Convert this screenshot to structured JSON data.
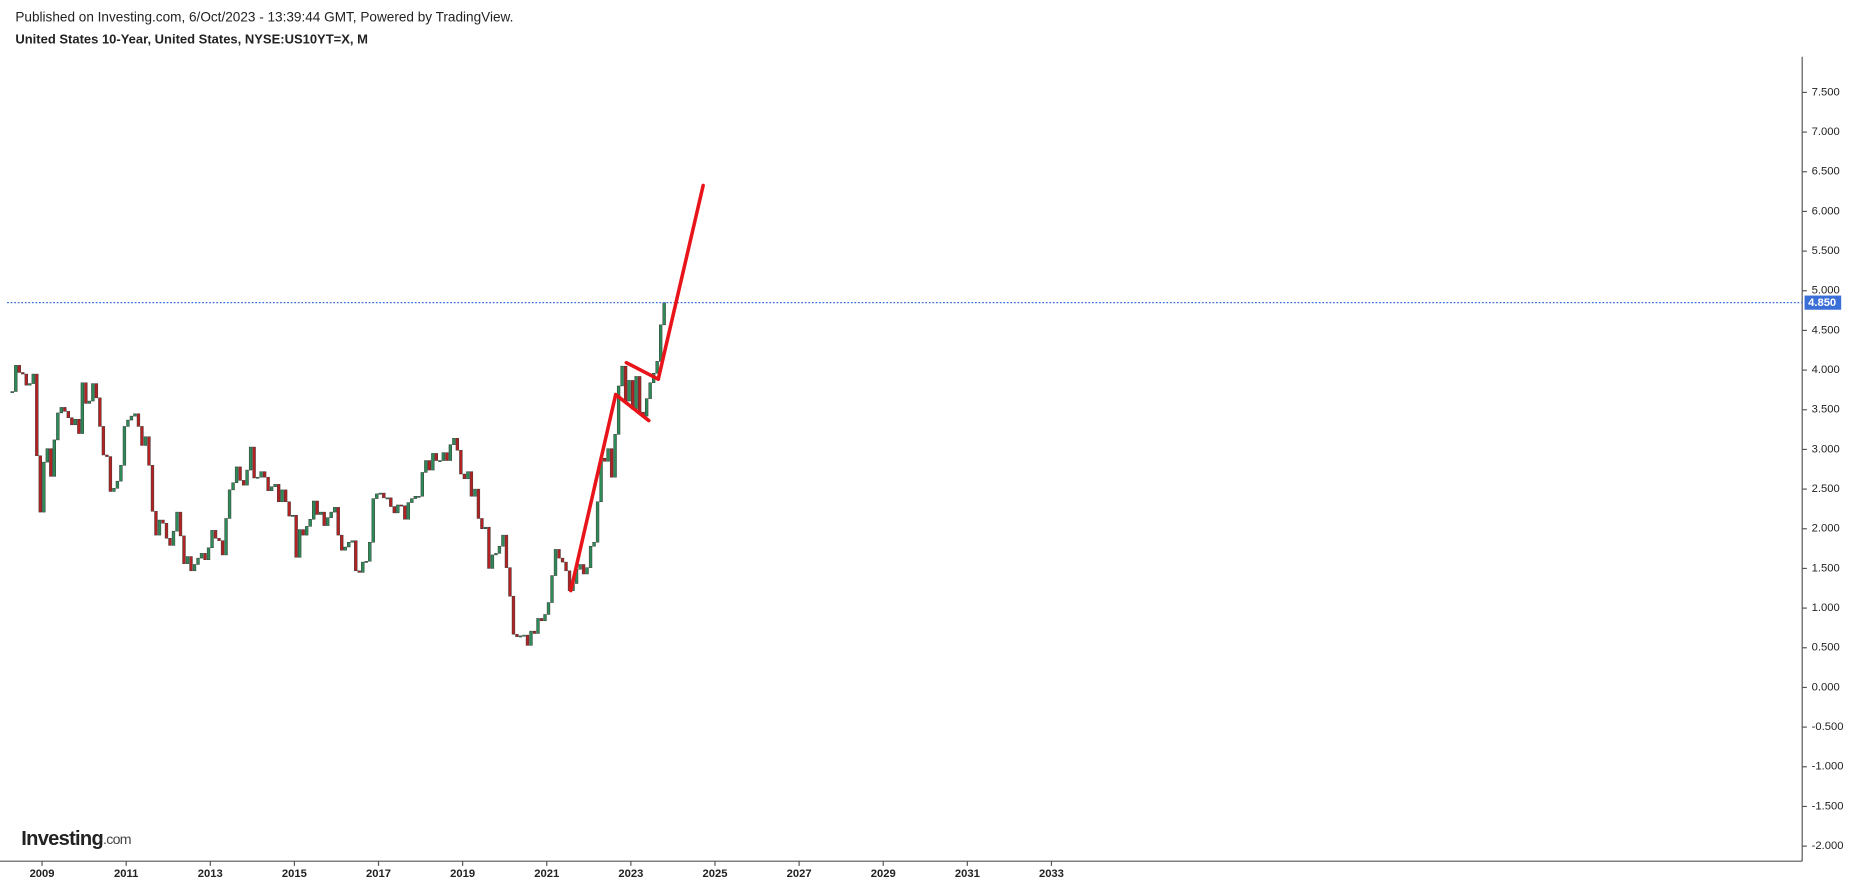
{
  "header": {
    "published": "Published on Investing.com, 6/Oct/2023 - 13:39:44 GMT, Powered by TradingView.",
    "symbol": "United States 10-Year, United States, NYSE:US10YT=X, M"
  },
  "logo": {
    "brand": "Investing",
    "suffix": ".com"
  },
  "chart_data": {
    "type": "candlestick",
    "x": [
      "2008-04",
      "2008-05",
      "2008-06",
      "2008-07",
      "2008-08",
      "2008-09",
      "2008-10",
      "2008-11",
      "2008-12",
      "2009-01",
      "2009-02",
      "2009-03",
      "2009-04",
      "2009-05",
      "2009-06",
      "2009-07",
      "2009-08",
      "2009-09",
      "2009-10",
      "2009-11",
      "2009-12",
      "2010-01",
      "2010-02",
      "2010-03",
      "2010-04",
      "2010-05",
      "2010-06",
      "2010-07",
      "2010-08",
      "2010-09",
      "2010-10",
      "2010-11",
      "2010-12",
      "2011-01",
      "2011-02",
      "2011-03",
      "2011-04",
      "2011-05",
      "2011-06",
      "2011-07",
      "2011-08",
      "2011-09",
      "2011-10",
      "2011-11",
      "2011-12",
      "2012-01",
      "2012-02",
      "2012-03",
      "2012-04",
      "2012-05",
      "2012-06",
      "2012-07",
      "2012-08",
      "2012-09",
      "2012-10",
      "2012-11",
      "2012-12",
      "2013-01",
      "2013-02",
      "2013-03",
      "2013-04",
      "2013-05",
      "2013-06",
      "2013-07",
      "2013-08",
      "2013-09",
      "2013-10",
      "2013-11",
      "2013-12",
      "2014-01",
      "2014-02",
      "2014-03",
      "2014-04",
      "2014-05",
      "2014-06",
      "2014-07",
      "2014-08",
      "2014-09",
      "2014-10",
      "2014-11",
      "2014-12",
      "2015-01",
      "2015-02",
      "2015-03",
      "2015-04",
      "2015-05",
      "2015-06",
      "2015-07",
      "2015-08",
      "2015-09",
      "2015-10",
      "2015-11",
      "2015-12",
      "2016-01",
      "2016-02",
      "2016-03",
      "2016-04",
      "2016-05",
      "2016-06",
      "2016-07",
      "2016-08",
      "2016-09",
      "2016-10",
      "2016-11",
      "2016-12",
      "2017-01",
      "2017-02",
      "2017-03",
      "2017-04",
      "2017-05",
      "2017-06",
      "2017-07",
      "2017-08",
      "2017-09",
      "2017-10",
      "2017-11",
      "2017-12",
      "2018-01",
      "2018-02",
      "2018-03",
      "2018-04",
      "2018-05",
      "2018-06",
      "2018-07",
      "2018-08",
      "2018-09",
      "2018-10",
      "2018-11",
      "2018-12",
      "2019-01",
      "2019-02",
      "2019-03",
      "2019-04",
      "2019-05",
      "2019-06",
      "2019-07",
      "2019-08",
      "2019-09",
      "2019-10",
      "2019-11",
      "2019-12",
      "2020-01",
      "2020-02",
      "2020-03",
      "2020-04",
      "2020-05",
      "2020-06",
      "2020-07",
      "2020-08",
      "2020-09",
      "2020-10",
      "2020-11",
      "2020-12",
      "2021-01",
      "2021-02",
      "2021-03",
      "2021-04",
      "2021-05",
      "2021-06",
      "2021-07",
      "2021-08",
      "2021-09",
      "2021-10",
      "2021-11",
      "2021-12",
      "2022-01",
      "2022-02",
      "2022-03",
      "2022-04",
      "2022-05",
      "2022-06",
      "2022-07",
      "2022-08",
      "2022-09",
      "2022-10",
      "2022-11",
      "2022-12",
      "2023-01",
      "2023-02",
      "2023-03",
      "2023-04",
      "2023-05",
      "2023-06",
      "2023-07",
      "2023-08",
      "2023-09",
      "2023-10"
    ],
    "values": [
      3.73,
      4.06,
      3.97,
      3.95,
      3.81,
      3.83,
      3.95,
      2.92,
      2.21,
      2.84,
      3.01,
      2.66,
      3.12,
      3.46,
      3.53,
      3.48,
      3.4,
      3.31,
      3.38,
      3.2,
      3.84,
      3.58,
      3.61,
      3.83,
      3.65,
      3.29,
      2.93,
      2.91,
      2.47,
      2.51,
      2.6,
      2.8,
      3.29,
      3.37,
      3.42,
      3.45,
      3.29,
      3.05,
      3.16,
      2.8,
      2.22,
      1.92,
      2.11,
      2.07,
      1.88,
      1.79,
      1.97,
      2.21,
      1.91,
      1.56,
      1.65,
      1.47,
      1.55,
      1.63,
      1.69,
      1.61,
      1.76,
      1.98,
      1.88,
      1.85,
      1.67,
      2.13,
      2.49,
      2.58,
      2.78,
      2.61,
      2.55,
      2.74,
      3.03,
      2.64,
      2.65,
      2.72,
      2.65,
      2.48,
      2.53,
      2.56,
      2.34,
      2.49,
      2.34,
      2.16,
      2.17,
      1.64,
      1.99,
      1.92,
      2.03,
      2.12,
      2.35,
      2.18,
      2.21,
      2.04,
      2.14,
      2.21,
      2.27,
      1.92,
      1.73,
      1.77,
      1.83,
      1.85,
      1.47,
      1.45,
      1.58,
      1.59,
      1.83,
      2.38,
      2.44,
      2.45,
      2.39,
      2.39,
      2.28,
      2.2,
      2.3,
      2.29,
      2.12,
      2.33,
      2.38,
      2.41,
      2.41,
      2.71,
      2.86,
      2.74,
      2.95,
      2.86,
      2.86,
      2.96,
      2.86,
      3.06,
      3.14,
      2.99,
      2.69,
      2.63,
      2.72,
      2.41,
      2.5,
      2.13,
      2.0,
      2.02,
      1.5,
      1.67,
      1.69,
      1.78,
      1.92,
      1.51,
      1.15,
      0.67,
      0.64,
      0.65,
      0.66,
      0.53,
      0.71,
      0.68,
      0.87,
      0.84,
      0.92,
      1.07,
      1.41,
      1.74,
      1.63,
      1.58,
      1.47,
      1.22,
      1.31,
      1.49,
      1.55,
      1.43,
      1.51,
      1.78,
      1.83,
      2.34,
      2.89,
      2.85,
      3.01,
      2.65,
      3.19,
      3.8,
      4.05,
      3.61,
      3.87,
      3.51,
      3.92,
      3.47,
      3.42,
      3.64,
      3.84,
      3.96,
      4.11,
      4.57,
      4.85
    ],
    "up_color": "#2e8b57",
    "down_color": "#b22222",
    "xlim": [
      2008,
      2050.85
    ],
    "xticks": [
      2009,
      2011,
      2013,
      2015,
      2017,
      2019,
      2021,
      2023,
      2025,
      2027,
      2029,
      2031,
      2033
    ],
    "ylim": [
      -2.19,
      7.95
    ],
    "yticks": [
      {
        "value": -2,
        "label": "-2.000"
      },
      {
        "value": -1.5,
        "label": "-1.500"
      },
      {
        "value": -1,
        "label": "-1.000"
      },
      {
        "value": -0.5,
        "label": "-0.500"
      },
      {
        "value": 0,
        "label": "0.000"
      },
      {
        "value": 0.5,
        "label": "0.500"
      },
      {
        "value": 1,
        "label": "1.000"
      },
      {
        "value": 1.5,
        "label": "1.500"
      },
      {
        "value": 2,
        "label": "2.000"
      },
      {
        "value": 2.5,
        "label": "2.500"
      },
      {
        "value": 3,
        "label": "3.000"
      },
      {
        "value": 3.5,
        "label": "3.500"
      },
      {
        "value": 4,
        "label": "4.000"
      },
      {
        "value": 4.5,
        "label": "4.500"
      },
      {
        "value": 5,
        "label": "5.000"
      },
      {
        "value": 5.5,
        "label": "5.500"
      },
      {
        "value": 6,
        "label": "6.000"
      },
      {
        "value": 6.5,
        "label": "6.500"
      },
      {
        "value": 7,
        "label": "7.000"
      },
      {
        "value": 7.5,
        "label": "7.500"
      }
    ],
    "last_price": {
      "value": 4.85,
      "label": "4.850"
    },
    "last_price_color": "#3b6fd8"
  }
}
